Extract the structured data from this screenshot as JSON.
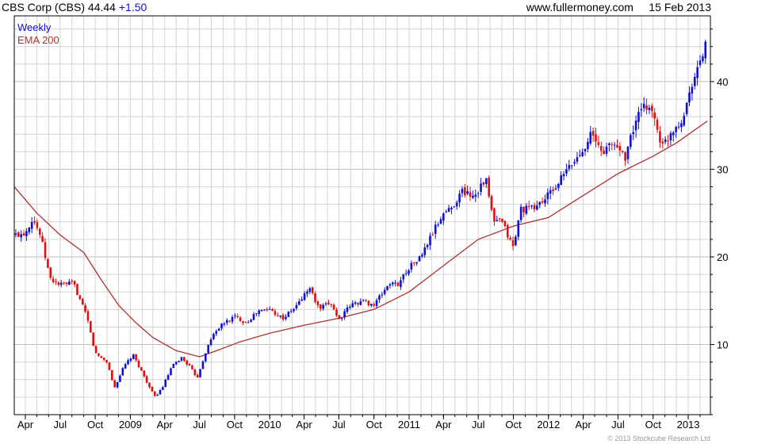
{
  "header": {
    "name": "CBS Corp (CBS)",
    "price": "44.44",
    "change": "+1.50",
    "website": "www.fullermoney.com",
    "date": "15 Feb 2013"
  },
  "copyright": "© 2013 Stockcube Research Ltd",
  "colors": {
    "up_candle": "#1010d0",
    "down_candle": "#e01010",
    "ema_line": "#b03030",
    "grid": "#d4d4d4",
    "weekly_label": "#1010d0",
    "ema_label": "#b03030"
  },
  "chart_data": {
    "type": "line",
    "title": "CBS Corp (CBS)",
    "grid": true,
    "y_axis_side": "right",
    "ylim": [
      2,
      47.5
    ],
    "x_range": [
      "2008-03-03",
      "2013-02-28"
    ],
    "y_ticks": [
      10,
      20,
      30,
      40
    ],
    "x_ticks": [
      {
        "label": "Apr",
        "date": "2008-04-01"
      },
      {
        "label": "Jul",
        "date": "2008-07-01"
      },
      {
        "label": "Oct",
        "date": "2008-10-01"
      },
      {
        "label": "2009",
        "date": "2009-01-01"
      },
      {
        "label": "Apr",
        "date": "2009-04-01"
      },
      {
        "label": "Jul",
        "date": "2009-07-01"
      },
      {
        "label": "Oct",
        "date": "2009-10-01"
      },
      {
        "label": "2010",
        "date": "2010-01-01"
      },
      {
        "label": "Apr",
        "date": "2010-04-01"
      },
      {
        "label": "Jul",
        "date": "2010-07-01"
      },
      {
        "label": "Oct",
        "date": "2010-10-01"
      },
      {
        "label": "2011",
        "date": "2011-01-01"
      },
      {
        "label": "Apr",
        "date": "2011-04-01"
      },
      {
        "label": "Jul",
        "date": "2011-07-01"
      },
      {
        "label": "Oct",
        "date": "2011-10-01"
      },
      {
        "label": "2012",
        "date": "2012-01-01"
      },
      {
        "label": "Apr",
        "date": "2012-04-01"
      },
      {
        "label": "Jul",
        "date": "2012-07-01"
      },
      {
        "label": "Oct",
        "date": "2012-10-01"
      },
      {
        "label": "2013",
        "date": "2013-01-01"
      }
    ],
    "series": [
      {
        "name": "Weekly",
        "kind": "candlestick",
        "approx_weekly_close": [
          [
            "2008-03-07",
            22.5
          ],
          [
            "2008-04-01",
            22.8
          ],
          [
            "2008-04-20",
            24.5
          ],
          [
            "2008-05-10",
            22.5
          ],
          [
            "2008-06-05",
            17.5
          ],
          [
            "2008-07-01",
            16.8
          ],
          [
            "2008-08-05",
            17.0
          ],
          [
            "2008-09-10",
            13.0
          ],
          [
            "2008-10-01",
            9.0
          ],
          [
            "2008-11-01",
            8.0
          ],
          [
            "2008-11-20",
            5.0
          ],
          [
            "2008-12-15",
            7.5
          ],
          [
            "2009-01-08",
            8.8
          ],
          [
            "2009-02-01",
            6.8
          ],
          [
            "2009-03-05",
            4.0
          ],
          [
            "2009-03-25",
            5.0
          ],
          [
            "2009-04-20",
            7.5
          ],
          [
            "2009-05-15",
            8.5
          ],
          [
            "2009-06-05",
            7.5
          ],
          [
            "2009-06-25",
            6.2
          ],
          [
            "2009-07-20",
            9.5
          ],
          [
            "2009-08-10",
            11.5
          ],
          [
            "2009-09-05",
            12.5
          ],
          [
            "2009-10-01",
            13.2
          ],
          [
            "2009-11-01",
            12.5
          ],
          [
            "2009-12-01",
            13.8
          ],
          [
            "2010-01-01",
            14.0
          ],
          [
            "2010-02-05",
            13.0
          ],
          [
            "2010-03-10",
            14.3
          ],
          [
            "2010-04-15",
            16.5
          ],
          [
            "2010-05-10",
            14.0
          ],
          [
            "2010-06-10",
            14.8
          ],
          [
            "2010-07-01",
            12.8
          ],
          [
            "2010-08-01",
            14.5
          ],
          [
            "2010-09-01",
            15.0
          ],
          [
            "2010-10-01",
            14.5
          ],
          [
            "2010-11-10",
            17.0
          ],
          [
            "2010-12-01",
            16.8
          ],
          [
            "2010-12-31",
            18.8
          ],
          [
            "2011-02-01",
            20.0
          ],
          [
            "2011-03-01",
            22.5
          ],
          [
            "2011-04-01",
            25.0
          ],
          [
            "2011-04-20",
            25.5
          ],
          [
            "2011-05-20",
            27.5
          ],
          [
            "2011-06-20",
            27.0
          ],
          [
            "2011-07-20",
            29.0
          ],
          [
            "2011-08-10",
            24.0
          ],
          [
            "2011-09-01",
            24.0
          ],
          [
            "2011-10-01",
            21.0
          ],
          [
            "2011-10-20",
            25.5
          ],
          [
            "2011-11-20",
            25.5
          ],
          [
            "2011-12-20",
            26.5
          ],
          [
            "2012-01-20",
            28.0
          ],
          [
            "2012-02-20",
            30.0
          ],
          [
            "2012-03-20",
            31.5
          ],
          [
            "2012-04-20",
            34.0
          ],
          [
            "2012-05-20",
            32.0
          ],
          [
            "2012-06-20",
            33.0
          ],
          [
            "2012-07-20",
            31.5
          ],
          [
            "2012-08-20",
            36.0
          ],
          [
            "2012-09-20",
            37.5
          ],
          [
            "2012-10-10",
            35.0
          ],
          [
            "2012-10-25",
            32.5
          ],
          [
            "2012-11-20",
            34.5
          ],
          [
            "2012-12-20",
            36.0
          ],
          [
            "2013-01-10",
            40.0
          ],
          [
            "2013-02-01",
            42.0
          ],
          [
            "2013-02-15",
            44.44
          ]
        ]
      },
      {
        "name": "EMA 200",
        "kind": "line",
        "points": [
          [
            "2008-03-03",
            28.0
          ],
          [
            "2008-05-01",
            25.0
          ],
          [
            "2008-07-01",
            22.5
          ],
          [
            "2008-09-01",
            20.5
          ],
          [
            "2008-10-15",
            17.5
          ],
          [
            "2008-12-01",
            14.5
          ],
          [
            "2009-01-15",
            12.5
          ],
          [
            "2009-03-01",
            10.8
          ],
          [
            "2009-05-01",
            9.3
          ],
          [
            "2009-07-01",
            8.6
          ],
          [
            "2009-08-15",
            9.3
          ],
          [
            "2009-10-15",
            10.3
          ],
          [
            "2010-01-01",
            11.3
          ],
          [
            "2010-04-01",
            12.2
          ],
          [
            "2010-07-01",
            13.0
          ],
          [
            "2010-10-01",
            14.0
          ],
          [
            "2011-01-01",
            16.0
          ],
          [
            "2011-04-01",
            19.0
          ],
          [
            "2011-07-01",
            22.0
          ],
          [
            "2011-10-01",
            23.5
          ],
          [
            "2012-01-01",
            24.5
          ],
          [
            "2012-04-01",
            27.0
          ],
          [
            "2012-07-01",
            29.5
          ],
          [
            "2012-10-01",
            31.5
          ],
          [
            "2012-12-01",
            33.0
          ],
          [
            "2013-02-20",
            35.5
          ]
        ]
      }
    ]
  }
}
